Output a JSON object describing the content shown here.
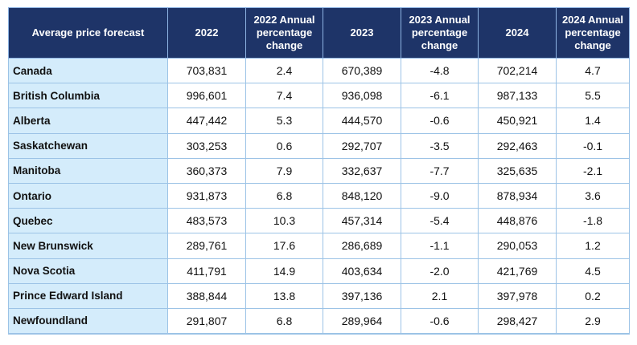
{
  "table": {
    "headers": [
      "Average price forecast",
      "2022",
      "2022 Annual percentage change",
      "2023",
      "2023 Annual percentage change",
      "2024",
      "2024 Annual percentage change"
    ],
    "rows": [
      [
        "Canada",
        "703,831",
        "2.4",
        "670,389",
        "-4.8",
        "702,214",
        "4.7"
      ],
      [
        "British Columbia",
        "996,601",
        "7.4",
        "936,098",
        "-6.1",
        "987,133",
        "5.5"
      ],
      [
        "Alberta",
        "447,442",
        "5.3",
        "444,570",
        "-0.6",
        "450,921",
        "1.4"
      ],
      [
        "Saskatchewan",
        "303,253",
        "0.6",
        "292,707",
        "-3.5",
        "292,463",
        "-0.1"
      ],
      [
        "Manitoba",
        "360,373",
        "7.9",
        "332,637",
        "-7.7",
        "325,635",
        "-2.1"
      ],
      [
        "Ontario",
        "931,873",
        "6.8",
        "848,120",
        "-9.0",
        "878,934",
        "3.6"
      ],
      [
        "Quebec",
        "483,573",
        "10.3",
        "457,314",
        "-5.4",
        "448,876",
        "-1.8"
      ],
      [
        "New Brunswick",
        "289,761",
        "17.6",
        "286,689",
        "-1.1",
        "290,053",
        "1.2"
      ],
      [
        "Nova Scotia",
        "411,791",
        "14.9",
        "403,634",
        "-2.0",
        "421,769",
        "4.5"
      ],
      [
        "Prince Edward Island",
        "388,844",
        "13.8",
        "397,136",
        "2.1",
        "397,978",
        "0.2"
      ],
      [
        "Newfoundland",
        "291,807",
        "6.8",
        "289,964",
        "-0.6",
        "298,427",
        "2.9"
      ]
    ]
  },
  "colors": {
    "header_bg": "#1e3468",
    "header_text": "#ffffff",
    "region_bg": "#d4ecfb",
    "border": "#9cc3e6"
  }
}
